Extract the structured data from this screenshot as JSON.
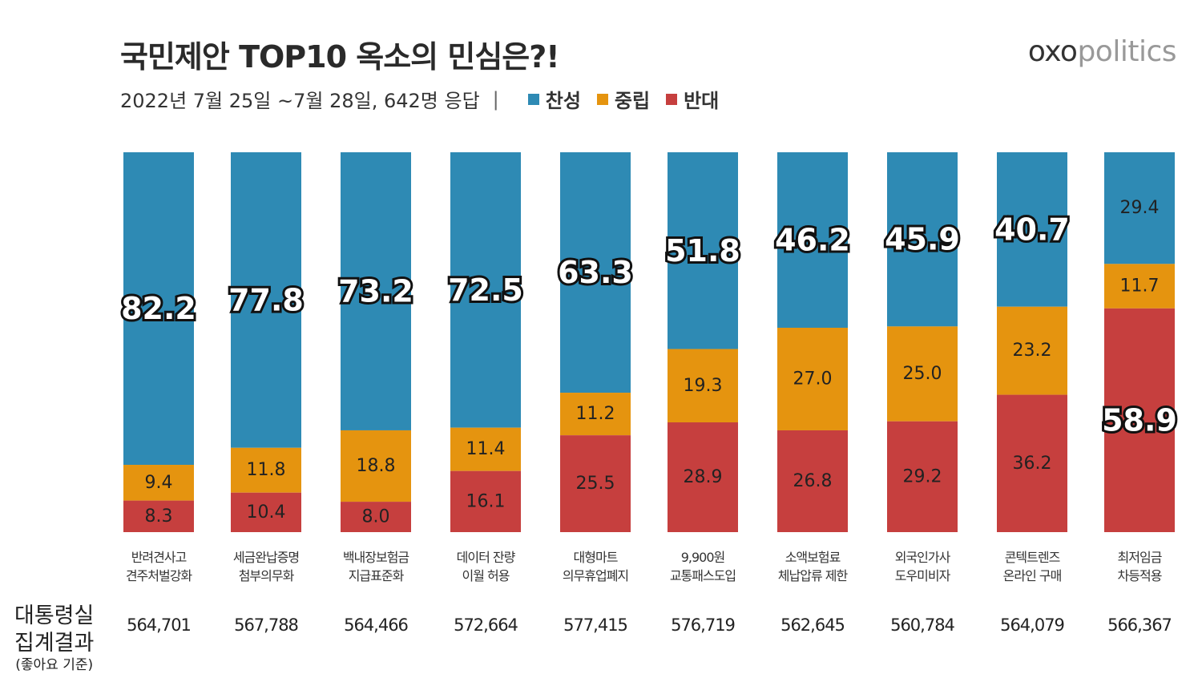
{
  "title": "국민제안 TOP10 옥소의 민심은?!",
  "brand": {
    "bold": "oxo",
    "light": "politics"
  },
  "subtitle": {
    "text": "2022년 7월 25일 ~7월 28일,  642명 응답",
    "separator": "|"
  },
  "row_label": {
    "line1": "대통령실",
    "line2": "집계결과",
    "note": "(좋아요 기준)"
  },
  "counts": [
    "564,701",
    "567,788",
    "564,466",
    "572,664",
    "577,415",
    "576,719",
    "562,645",
    "560,784",
    "564,079",
    "566,367"
  ],
  "chart_data": {
    "type": "bar",
    "stacked": true,
    "title": "국민제안 TOP10 옥소의 민심은?!",
    "legend_position": "top",
    "ylim": [
      0,
      100
    ],
    "categories": [
      [
        "반려견사고",
        "견주처벌강화"
      ],
      [
        "세금완납증명",
        "첨부의무화"
      ],
      [
        "백내장보험금",
        "지급표준화"
      ],
      [
        "데이터 잔량",
        "이월 허용"
      ],
      [
        "대형마트",
        "의무휴업폐지"
      ],
      [
        "9,900원",
        "교통패스도입"
      ],
      [
        "소액보험료",
        "체납압류 제한"
      ],
      [
        "외국인가사",
        "도우미비자"
      ],
      [
        "콘텍트렌즈",
        "온라인 구매"
      ],
      [
        "최저임금",
        "차등적용"
      ]
    ],
    "series": [
      {
        "name": "찬성",
        "color": "#2e8ab4",
        "values": [
          82.2,
          77.8,
          73.2,
          72.5,
          63.3,
          51.8,
          46.2,
          45.9,
          40.7,
          29.4
        ]
      },
      {
        "name": "중립",
        "color": "#e5940f",
        "values": [
          9.4,
          11.8,
          18.8,
          11.4,
          11.2,
          19.3,
          27.0,
          25.0,
          23.2,
          11.7
        ]
      },
      {
        "name": "반대",
        "color": "#c63f3e",
        "values": [
          8.3,
          10.4,
          8.0,
          16.1,
          25.5,
          28.9,
          26.8,
          29.2,
          36.2,
          58.9
        ]
      }
    ]
  }
}
